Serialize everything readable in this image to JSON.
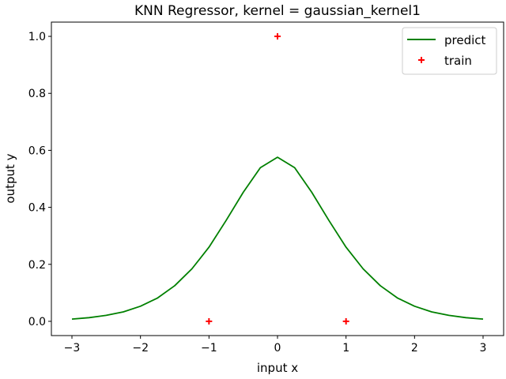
{
  "chart_data": {
    "type": "line",
    "title": "KNN Regressor, kernel = gaussian_kernel1",
    "xlabel": "input x",
    "ylabel": "output y",
    "xlim": [
      -3.3,
      3.3
    ],
    "ylim": [
      -0.05,
      1.05
    ],
    "xticks": [
      -3,
      -2,
      -1,
      0,
      1,
      2,
      3
    ],
    "xtick_labels": [
      "−3",
      "−2",
      "−1",
      "0",
      "1",
      "2",
      "3"
    ],
    "yticks": [
      0.0,
      0.2,
      0.4,
      0.6,
      0.8,
      1.0
    ],
    "ytick_labels": [
      "0.0",
      "0.2",
      "0.4",
      "0.6",
      "0.8",
      "1.0"
    ],
    "grid": false,
    "legend_position": "top-right",
    "series": [
      {
        "name": "predict",
        "kind": "line",
        "color": "#008000",
        "x": [
          -3.0,
          -2.75,
          -2.5,
          -2.25,
          -2.0,
          -1.75,
          -1.5,
          -1.25,
          -1.0,
          -0.75,
          -0.5,
          -0.25,
          0.0,
          0.25,
          0.5,
          0.75,
          1.0,
          1.25,
          1.5,
          1.75,
          2.0,
          2.25,
          2.5,
          2.75,
          3.0
        ],
        "y": [
          0.008,
          0.013,
          0.021,
          0.033,
          0.053,
          0.082,
          0.125,
          0.184,
          0.26,
          0.354,
          0.453,
          0.539,
          0.576,
          0.539,
          0.453,
          0.354,
          0.26,
          0.184,
          0.125,
          0.082,
          0.053,
          0.033,
          0.021,
          0.013,
          0.008
        ]
      },
      {
        "name": "train",
        "kind": "scatter",
        "marker": "+",
        "color": "#ff0000",
        "x": [
          -1,
          0,
          1
        ],
        "y": [
          0,
          1,
          0
        ]
      }
    ]
  }
}
